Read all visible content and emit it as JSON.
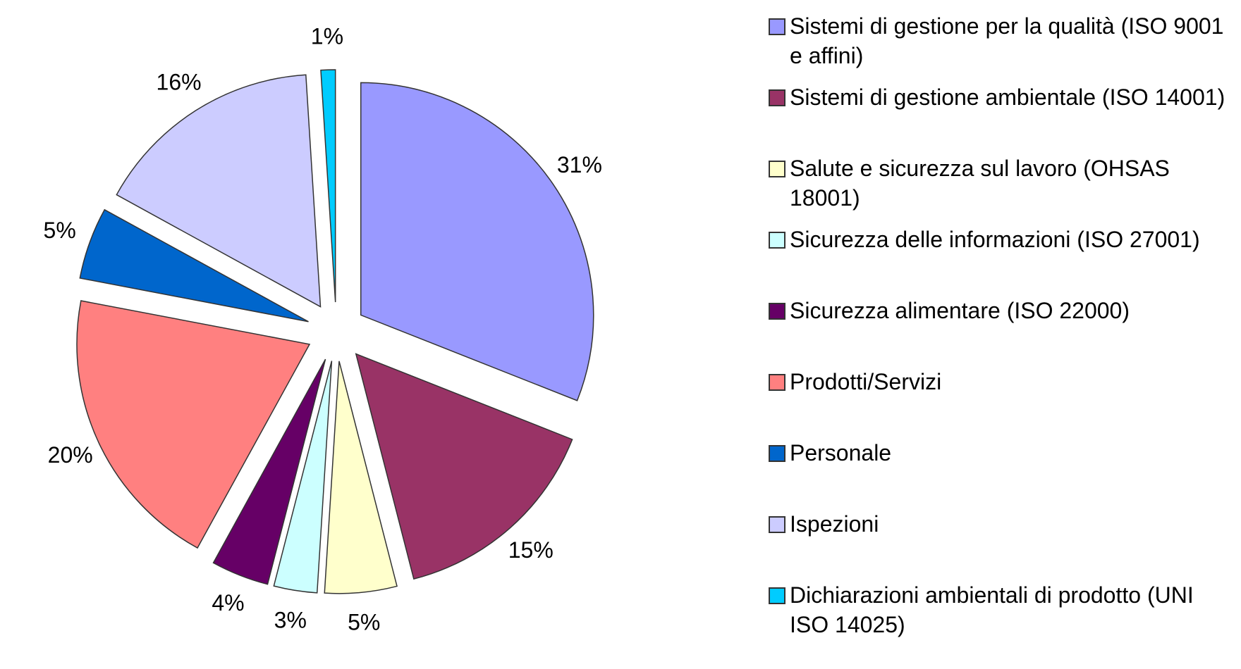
{
  "chart_data": {
    "type": "pie",
    "categories": [
      "Sistemi di gestione per la qualità (ISO 9001 e affini)",
      "Sistemi di gestione ambientale  (ISO 14001)",
      "Salute e sicurezza sul lavoro (OHSAS 18001)",
      "Sicurezza delle informazioni (ISO 27001)",
      "Sicurezza alimentare (ISO 22000)",
      "Prodotti/Servizi",
      "Personale",
      "Ispezioni",
      "Dichiarazioni ambientali di prodotto (UNI ISO 14025)"
    ],
    "values": [
      31,
      15,
      5,
      3,
      4,
      20,
      5,
      16,
      1
    ],
    "value_labels": [
      "31%",
      "15%",
      "5%",
      "3%",
      "4%",
      "20%",
      "5%",
      "16%",
      "1%"
    ],
    "colors": [
      "#9999ff",
      "#993366",
      "#ffffcc",
      "#ccffff",
      "#660066",
      "#ff8080",
      "#0066cc",
      "#ccccff",
      "#00ccff"
    ],
    "legend": "right"
  }
}
